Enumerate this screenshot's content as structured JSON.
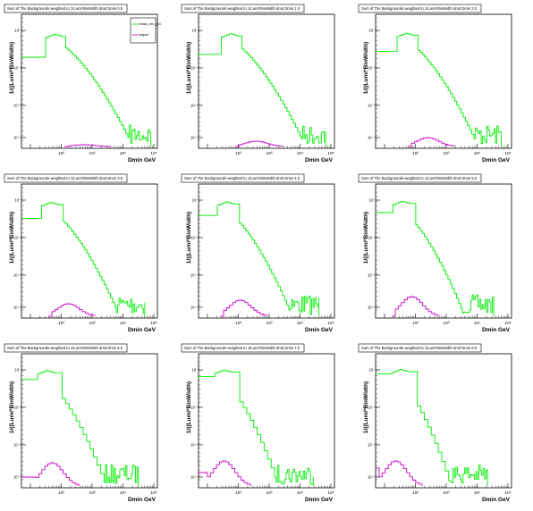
{
  "page": {
    "background": "#ffffff"
  },
  "colors": {
    "bkg_dm": "#00ee00",
    "sig": "#cc00cc",
    "axis": "#000000"
  },
  "legend": {
    "items": [
      {
        "label": "hmass_dm_{}0.0",
        "color": "#00ee00"
      },
      {
        "label": "hsignal",
        "color": "#cc00cc"
      }
    ]
  },
  "chart_data": [
    {
      "type": "line",
      "title": "Sum of The Backgrounds weighted to 1/Lumi*BinWidth dmd Dmin 0.5",
      "xlabel": "Dmin GeV",
      "ylabel": "1/((Lumi*BinWidth)",
      "xlog": true,
      "ylog": true,
      "xticks": [
        "10",
        "10²",
        "10³",
        "10⁴",
        "10⁵"
      ],
      "yticks": [
        "10⁻⁸",
        "10⁻¹²",
        "10⁻¹⁶",
        "10⁻¹⁹"
      ],
      "legend": true
    },
    {
      "type": "line",
      "title": "Sum of The Backgrounds weighted to 1/Lumi*BinWidth dmd Dmin 1.0",
      "xlabel": "Dmin GeV",
      "ylabel": "1/((Lumi*BinWidth)",
      "xlog": true,
      "ylog": true,
      "xticks": [
        "10",
        "10²",
        "10³",
        "10⁴",
        "10⁵"
      ],
      "yticks": [
        "10⁻⁸",
        "10⁻¹²",
        "10⁻¹⁶",
        "10⁻¹⁹"
      ],
      "legend": false
    },
    {
      "type": "line",
      "title": "Sum of The Backgrounds weighted to 1/Lumi*BinWidth dmd Dmin 2.0",
      "xlabel": "Dmin GeV",
      "ylabel": "1/((Lumi*BinWidth)",
      "xlog": true,
      "ylog": true,
      "xticks": [
        "10",
        "10²",
        "10³",
        "10⁴",
        "10⁵"
      ],
      "yticks": [
        "10⁻⁸",
        "10⁻¹²",
        "10⁻¹⁶",
        "10⁻¹⁹"
      ],
      "legend": false
    },
    {
      "type": "line",
      "title": "Sum of The Backgrounds weighted to 1/Lumi*BinWidth dmd Dmin 3.0",
      "xlabel": "Dmin GeV",
      "ylabel": "1/((Lumi*BinWidth)",
      "xlog": true,
      "ylog": true,
      "xticks": [
        "10",
        "10²",
        "10³",
        "10⁴",
        "10⁵"
      ],
      "yticks": [
        "10⁻⁸",
        "10⁻¹²",
        "10⁻¹⁶",
        "10⁻¹⁹"
      ],
      "legend": false
    },
    {
      "type": "line",
      "title": "Sum of The Backgrounds weighted to 1/Lumi*BinWidth dmd Dmin 4.0",
      "xlabel": "Dmin GeV",
      "ylabel": "1/((Lumi*BinWidth)",
      "xlog": true,
      "ylog": true,
      "xticks": [
        "10",
        "10²",
        "10³",
        "10⁴",
        "10⁵"
      ],
      "yticks": [
        "10⁻⁸",
        "10⁻¹²",
        "10⁻¹⁶",
        "10⁻¹⁹"
      ],
      "legend": false
    },
    {
      "type": "line",
      "title": "Sum of The Backgrounds weighted to 1/Lumi*BinWidth dmd Dmin 5.0",
      "xlabel": "Dmin GeV",
      "ylabel": "1/((Lumi*BinWidth)",
      "xlog": true,
      "ylog": true,
      "xticks": [
        "10",
        "10²",
        "10³",
        "10⁴",
        "10⁵"
      ],
      "yticks": [
        "10⁻⁸",
        "10⁻¹²",
        "10⁻¹⁶",
        "10⁻¹⁹"
      ],
      "legend": false
    },
    {
      "type": "line",
      "title": "Sum of The Backgrounds weighted to 1/Lumi*BinWidth dmd Dmin 6.0",
      "xlabel": "Dmin GeV",
      "ylabel": "1/((Lumi*BinWidth)",
      "xlog": true,
      "ylog": true,
      "xticks": [
        "10",
        "10²",
        "10³",
        "10⁴",
        "10⁵"
      ],
      "yticks": [
        "10⁻⁸",
        "10⁻¹²",
        "10⁻¹⁶",
        "10⁻¹⁹"
      ],
      "legend": false
    },
    {
      "type": "line",
      "title": "Sum of The Backgrounds weighted to 1/Lumi*BinWidth dmd Dmin 7.0",
      "xlabel": "Dmin GeV",
      "ylabel": "1/((Lumi*BinWidth)",
      "xlog": true,
      "ylog": true,
      "xticks": [
        "10",
        "10²",
        "10³",
        "10⁴",
        "10⁵"
      ],
      "yticks": [
        "10⁻⁸",
        "10⁻¹²",
        "10⁻¹⁶",
        "10⁻¹⁹"
      ],
      "legend": false
    },
    {
      "type": "line",
      "title": "Sum of The Backgrounds weighted to 1/Lumi*BinWidth dmd Dmin 8.0",
      "xlabel": "Dmin GeV",
      "ylabel": "1/((Lumi*BinWidth)",
      "xlog": true,
      "ylog": true,
      "xticks": [
        "10",
        "10²",
        "10³",
        "10⁴",
        "10⁵"
      ],
      "yticks": [
        "10⁻⁸",
        "10⁻¹²",
        "10⁻¹⁶",
        "10⁻¹⁹"
      ],
      "legend": false
    }
  ]
}
